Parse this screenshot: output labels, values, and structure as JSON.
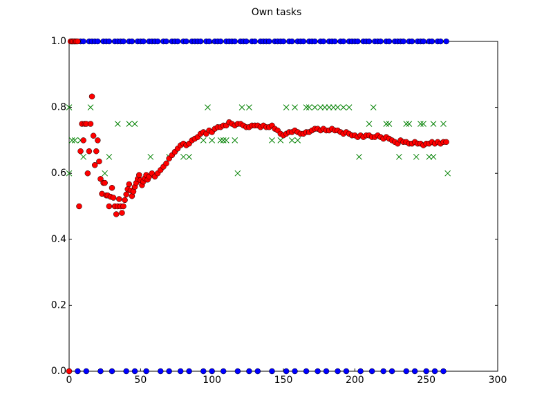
{
  "chart_data": {
    "type": "scatter",
    "title": "Own tasks",
    "xlim": [
      0,
      300
    ],
    "ylim": [
      0,
      1
    ],
    "xticks": [
      0,
      50,
      100,
      150,
      200,
      250,
      300
    ],
    "yticks": [
      {
        "value": 0,
        "label": "0.0"
      },
      {
        "value": 0.2,
        "label": "0.2"
      },
      {
        "value": 0.4,
        "label": "0.4"
      },
      {
        "value": 0.6,
        "label": "0.6"
      },
      {
        "value": 0.8,
        "label": "0.8"
      },
      {
        "value": 1,
        "label": "1.0"
      }
    ],
    "grid": false,
    "series": [
      {
        "color": "#0000ff",
        "marker": "o",
        "x": [
          0,
          2,
          4,
          6,
          8,
          10,
          12,
          14,
          16,
          18,
          20,
          22,
          24,
          26,
          28,
          30,
          32,
          34,
          36,
          38,
          40,
          42,
          44,
          46,
          48,
          50,
          52,
          54,
          56,
          58,
          60,
          62,
          64,
          66,
          68,
          70,
          72,
          74,
          76,
          78,
          80,
          82,
          84,
          86,
          88,
          90,
          92,
          94,
          96,
          98,
          100,
          102,
          104,
          106,
          108,
          110,
          112,
          114,
          116,
          118,
          120,
          122,
          124,
          126,
          128,
          130,
          132,
          134,
          136,
          138,
          140,
          142,
          144,
          146,
          148,
          150,
          152,
          154,
          156,
          158,
          160,
          162,
          164,
          166,
          168,
          170,
          172,
          174,
          176,
          178,
          180,
          182,
          184,
          186,
          188,
          190,
          192,
          194,
          196,
          198,
          200,
          202,
          204,
          206,
          208,
          210,
          212,
          214,
          216,
          218,
          220,
          222,
          224,
          226,
          228,
          230,
          232,
          234,
          236,
          238,
          240,
          242,
          244,
          246,
          248,
          250,
          252,
          254,
          256,
          258,
          260,
          262,
          264
        ],
        "values": [
          0,
          1,
          1,
          0,
          1,
          1,
          0,
          1,
          1,
          1,
          1,
          0,
          1,
          1,
          1,
          0,
          1,
          1,
          1,
          1,
          0,
          1,
          1,
          0,
          1,
          1,
          1,
          0,
          1,
          1,
          1,
          1,
          0,
          1,
          1,
          0,
          1,
          1,
          1,
          0,
          1,
          1,
          0,
          1,
          1,
          1,
          1,
          0,
          1,
          1,
          0,
          1,
          1,
          1,
          0,
          1,
          1,
          1,
          1,
          0,
          1,
          1,
          1,
          0,
          1,
          1,
          0,
          1,
          1,
          1,
          1,
          0,
          1,
          1,
          1,
          1,
          0,
          1,
          1,
          0,
          1,
          1,
          1,
          0,
          1,
          1,
          1,
          0,
          1,
          1,
          0,
          1,
          1,
          1,
          0,
          1,
          1,
          0,
          1,
          1,
          1,
          1,
          0,
          1,
          1,
          1,
          0,
          1,
          1,
          1,
          0,
          1,
          1,
          0,
          1,
          1,
          1,
          1,
          0,
          1,
          1,
          0,
          1,
          1,
          1,
          0,
          1,
          1,
          0,
          1,
          1,
          0,
          1
        ]
      },
      {
        "color": "#008000",
        "marker": "x",
        "x": [
          0,
          0,
          2,
          4,
          8,
          10,
          15,
          25,
          28,
          34,
          42,
          46,
          57,
          70,
          80,
          84,
          94,
          97,
          100,
          106,
          108,
          110,
          116,
          118,
          121,
          126,
          142,
          148,
          152,
          156,
          158,
          160,
          166,
          168,
          172,
          176,
          179,
          182,
          185,
          188,
          192,
          196,
          203,
          210,
          213,
          222,
          224,
          231,
          236,
          238,
          243,
          246,
          248,
          252,
          255,
          255,
          262,
          265
        ],
        "values": [
          0.8,
          0.6,
          0.7,
          0.7,
          0.7,
          0.65,
          0.8,
          0.6,
          0.65,
          0.75,
          0.75,
          0.75,
          0.65,
          0.65,
          0.65,
          0.65,
          0.7,
          0.8,
          0.7,
          0.7,
          0.7,
          0.7,
          0.7,
          0.6,
          0.8,
          0.8,
          0.7,
          0.7,
          0.8,
          0.7,
          0.8,
          0.7,
          0.8,
          0.8,
          0.8,
          0.8,
          0.8,
          0.8,
          0.8,
          0.8,
          0.8,
          0.8,
          0.65,
          0.75,
          0.8,
          0.75,
          0.75,
          0.65,
          0.75,
          0.75,
          0.65,
          0.75,
          0.75,
          0.65,
          0.65,
          0.75,
          0.75,
          0.6
        ]
      },
      {
        "color": "#ff0000",
        "marker": "o",
        "x": [
          0,
          1,
          2,
          3,
          4,
          5,
          6,
          7,
          8,
          9,
          10,
          11,
          12,
          13,
          14,
          15,
          16,
          17,
          18,
          19,
          20,
          21,
          22,
          23,
          24,
          25,
          26,
          27,
          28,
          29,
          30,
          31,
          32,
          33,
          34,
          35,
          36,
          37,
          38,
          39,
          40,
          41,
          42,
          43,
          44,
          45,
          46,
          47,
          48,
          49,
          50,
          51,
          52,
          53,
          54,
          55,
          56,
          58,
          60,
          62,
          64,
          66,
          68,
          70,
          72,
          74,
          76,
          78,
          80,
          82,
          84,
          86,
          88,
          90,
          92,
          94,
          96,
          98,
          100,
          102,
          104,
          106,
          108,
          110,
          112,
          114,
          116,
          118,
          120,
          122,
          124,
          126,
          128,
          130,
          132,
          134,
          136,
          138,
          140,
          142,
          144,
          146,
          148,
          150,
          152,
          154,
          156,
          158,
          160,
          162,
          164,
          166,
          168,
          170,
          172,
          174,
          176,
          178,
          180,
          182,
          184,
          186,
          188,
          190,
          192,
          194,
          196,
          198,
          200,
          202,
          204,
          206,
          208,
          210,
          212,
          214,
          216,
          218,
          220,
          222,
          224,
          226,
          228,
          230,
          232,
          234,
          236,
          238,
          240,
          242,
          244,
          246,
          248,
          250,
          252,
          254,
          256,
          258,
          260,
          262,
          264
        ],
        "values": [
          0,
          1,
          1,
          1,
          1,
          1,
          1,
          0.5,
          0.667,
          0.75,
          0.7,
          0.75,
          0.75,
          0.6,
          0.667,
          0.75,
          0.833,
          0.714,
          0.625,
          0.667,
          0.7,
          0.636,
          0.583,
          0.538,
          0.571,
          0.571,
          0.533,
          0.533,
          0.5,
          0.529,
          0.556,
          0.526,
          0.5,
          0.476,
          0.5,
          0.522,
          0.5,
          0.48,
          0.5,
          0.519,
          0.536,
          0.552,
          0.567,
          0.548,
          0.531,
          0.545,
          0.559,
          0.571,
          0.583,
          0.595,
          0.579,
          0.564,
          0.575,
          0.585,
          0.595,
          0.581,
          0.59,
          0.6,
          0.59,
          0.6,
          0.61,
          0.62,
          0.63,
          0.645,
          0.655,
          0.665,
          0.675,
          0.685,
          0.69,
          0.685,
          0.69,
          0.7,
          0.705,
          0.71,
          0.72,
          0.725,
          0.72,
          0.73,
          0.725,
          0.735,
          0.74,
          0.74,
          0.745,
          0.745,
          0.755,
          0.75,
          0.745,
          0.75,
          0.75,
          0.745,
          0.74,
          0.74,
          0.745,
          0.745,
          0.745,
          0.74,
          0.745,
          0.74,
          0.74,
          0.745,
          0.735,
          0.73,
          0.72,
          0.715,
          0.72,
          0.725,
          0.725,
          0.73,
          0.725,
          0.72,
          0.72,
          0.725,
          0.725,
          0.73,
          0.735,
          0.735,
          0.73,
          0.735,
          0.73,
          0.73,
          0.735,
          0.73,
          0.73,
          0.725,
          0.72,
          0.725,
          0.72,
          0.715,
          0.715,
          0.71,
          0.715,
          0.71,
          0.715,
          0.715,
          0.71,
          0.71,
          0.715,
          0.71,
          0.705,
          0.71,
          0.705,
          0.7,
          0.695,
          0.69,
          0.7,
          0.695,
          0.695,
          0.69,
          0.69,
          0.695,
          0.69,
          0.69,
          0.685,
          0.69,
          0.69,
          0.695,
          0.69,
          0.695,
          0.69,
          0.695,
          0.695
        ]
      }
    ]
  }
}
